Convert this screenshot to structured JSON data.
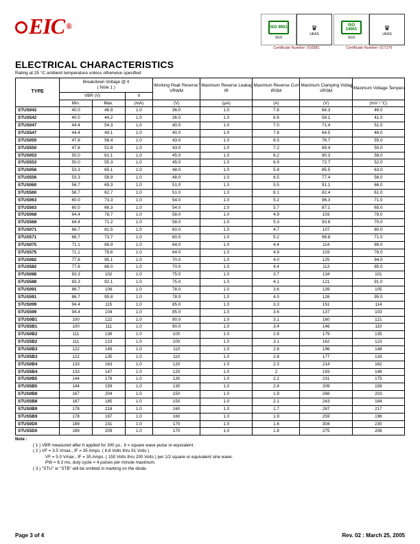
{
  "logo": {
    "text": "EIC",
    "reg": "®"
  },
  "certs": {
    "iso9001": "ISO 9001",
    "iso14001": "ISO 14001",
    "ukas": "UKAS",
    "cap1": "Certificate Number: 010581",
    "cap2": "Certificate Number: 017276"
  },
  "title": "ELECTRICAL CHARACTERISTICS",
  "subtitle": "Rating at 25 °C ambient temperature unless otherwise specified",
  "headers": {
    "type": "TYPE",
    "bv": "Breakdown Voltage @  It",
    "note1": "( Note 1 )",
    "vbr": "VBR  (V)",
    "min": "Min.",
    "max": "Max.",
    "it": "It",
    "it_unit": "(mA)",
    "wprv": "Working Peak Reverse Voltage",
    "vrwm": "VRWM",
    "vrwm_unit": "(V)",
    "mrl": "Maximum Reverse Leakage @ VRWM",
    "ir": "IR",
    "ir_unit": "(µA)",
    "mrc": "Maximum Reverse Current",
    "irsm": "IRSM",
    "irsm_unit": "(A)",
    "mcv": "Maximum Clamping Voltage @ IRSM",
    "vrsm": "VRSM",
    "vrsm_unit": "(V)",
    "mvtv": "Maximum Voltage Temperature Variation of VBR",
    "mvtv_unit": "(mV / °C)"
  },
  "rows": [
    {
      "t": "STUS042",
      "min": "40.0",
      "max": "48.9",
      "it": "1.0",
      "vrwm": "36.0",
      "ir": "1.0",
      "irsm": "7.8",
      "vrsm": "64.3",
      "tv": "46.0"
    },
    {
      "t": "STUS542",
      "min": "40.0",
      "max": "44.2",
      "it": "1.0",
      "vrwm": "36.0",
      "ir": "1.0",
      "irsm": "8.6",
      "vrsm": "58.1",
      "tv": "41.0"
    },
    {
      "t": "STUS047",
      "min": "44.4",
      "max": "54.3",
      "it": "1.0",
      "vrwm": "40.0",
      "ir": "1.0",
      "irsm": "7.0",
      "vrsm": "71.4",
      "tv": "51.0"
    },
    {
      "t": "STUS547",
      "min": "44.4",
      "max": "49.1",
      "it": "1.0",
      "vrwm": "40.0",
      "ir": "1.0",
      "irsm": "7.8",
      "vrsm": "64.5",
      "tv": "46.0"
    },
    {
      "t": "STUS050",
      "min": "47.8",
      "max": "58.4",
      "it": "1.0",
      "vrwm": "43.0",
      "ir": "1.0",
      "irsm": "6.5",
      "vrsm": "76.7",
      "tv": "55.0"
    },
    {
      "t": "STUS550",
      "min": "47.8",
      "max": "52.8",
      "it": "1.0",
      "vrwm": "43.0",
      "ir": "1.0",
      "irsm": "7.2",
      "vrsm": "69.4",
      "tv": "50.0"
    },
    {
      "t": "STUS053",
      "min": "50.0",
      "max": "61.1",
      "it": "1.0",
      "vrwm": "45.0",
      "ir": "1.0",
      "irsm": "6.2",
      "vrsm": "80.3",
      "tv": "58.0"
    },
    {
      "t": "STUS553",
      "min": "50.0",
      "max": "55.3",
      "it": "1.0",
      "vrwm": "45.0",
      "ir": "1.0",
      "irsm": "6.9",
      "vrsm": "72.7",
      "tv": "52.0"
    },
    {
      "t": "STUS056",
      "min": "53.3",
      "max": "65.1",
      "it": "1.0",
      "vrwm": "48.0",
      "ir": "1.0",
      "irsm": "5.8",
      "vrsm": "85.5",
      "tv": "63.0"
    },
    {
      "t": "STUS556",
      "min": "53.3",
      "max": "58.9",
      "it": "1.0",
      "vrwm": "48.0",
      "ir": "1.0",
      "irsm": "6.5",
      "vrsm": "77.4",
      "tv": "56.0"
    },
    {
      "t": "STUS060",
      "min": "56.7",
      "max": "69.3",
      "it": "1.0",
      "vrwm": "51.0",
      "ir": "1.0",
      "irsm": "5.5",
      "vrsm": "91.1",
      "tv": "66.0"
    },
    {
      "t": "STUS560",
      "min": "56.7",
      "max": "62.7",
      "it": "1.0",
      "vrwm": "51.0",
      "ir": "1.0",
      "irsm": "6.1",
      "vrsm": "82.4",
      "tv": "61.0"
    },
    {
      "t": "STUS063",
      "min": "60.0",
      "max": "73.3",
      "it": "1.0",
      "vrwm": "54.0",
      "ir": "1.0",
      "irsm": "5.2",
      "vrsm": "96.3",
      "tv": "71.0"
    },
    {
      "t": "STUS563",
      "min": "60.0",
      "max": "66.3",
      "it": "1.0",
      "vrwm": "54.0",
      "ir": "1.0",
      "irsm": "5.7",
      "vrsm": "87.1",
      "tv": "65.0"
    },
    {
      "t": "STUS068",
      "min": "64.4",
      "max": "78.7",
      "it": "1.0",
      "vrwm": "58.0",
      "ir": "1.0",
      "irsm": "4.9",
      "vrsm": "103",
      "tv": "78.0"
    },
    {
      "t": "STUS568",
      "min": "64.4",
      "max": "71.2",
      "it": "1.0",
      "vrwm": "58.0",
      "ir": "1.0",
      "irsm": "5.3",
      "vrsm": "93.6",
      "tv": "70.0"
    },
    {
      "t": "STUS071",
      "min": "66.7",
      "max": "81.5",
      "it": "1.0",
      "vrwm": "60.0",
      "ir": "1.0",
      "irsm": "4.7",
      "vrsm": "107",
      "tv": "80.0"
    },
    {
      "t": "STUS571",
      "min": "66.7",
      "max": "73.7",
      "it": "1.0",
      "vrwm": "60.0",
      "ir": "1.0",
      "irsm": "5.2",
      "vrsm": "96.8",
      "tv": "71.0"
    },
    {
      "t": "STUS075",
      "min": "71.1",
      "max": "86.9",
      "it": "1.0",
      "vrwm": "64.0",
      "ir": "1.0",
      "irsm": "4.4",
      "vrsm": "114",
      "tv": "86.0"
    },
    {
      "t": "STUS575",
      "min": "71.1",
      "max": "78.6",
      "it": "1.0",
      "vrwm": "64.0",
      "ir": "1.0",
      "irsm": "4.9",
      "vrsm": "103",
      "tv": "76.0"
    },
    {
      "t": "STUS082",
      "min": "77.8",
      "max": "95.1",
      "it": "1.0",
      "vrwm": "70.0",
      "ir": "1.0",
      "irsm": "4.0",
      "vrsm": "125",
      "tv": "94.0"
    },
    {
      "t": "STUS582",
      "min": "77.8",
      "max": "86.0",
      "it": "1.0",
      "vrwm": "70.0",
      "ir": "1.0",
      "irsm": "4.4",
      "vrsm": "113",
      "tv": "85.0"
    },
    {
      "t": "STUS088",
      "min": "83.3",
      "max": "102",
      "it": "1.0",
      "vrwm": "75.0",
      "ir": "1.0",
      "irsm": "3.7",
      "vrsm": "134",
      "tv": "101"
    },
    {
      "t": "STUS588",
      "min": "83.3",
      "max": "92.1",
      "it": "1.0",
      "vrwm": "75.0",
      "ir": "1.0",
      "irsm": "4.1",
      "vrsm": "121",
      "tv": "91.0"
    },
    {
      "t": "STUS091",
      "min": "86.7",
      "max": "106",
      "it": "1.0",
      "vrwm": "78.0",
      "ir": "1.0",
      "irsm": "3.6",
      "vrsm": "139",
      "tv": "105"
    },
    {
      "t": "STUS591",
      "min": "86.7",
      "max": "95.8",
      "it": "1.0",
      "vrwm": "78.0",
      "ir": "1.0",
      "irsm": "4.0",
      "vrsm": "126",
      "tv": "95.0"
    },
    {
      "t": "STUS099",
      "min": "94.4",
      "max": "115",
      "it": "1.0",
      "vrwm": "85.0",
      "ir": "1.0",
      "irsm": "3.3",
      "vrsm": "151",
      "tv": "114"
    },
    {
      "t": "STUS599",
      "min": "94.4",
      "max": "104",
      "it": "1.0",
      "vrwm": "85.0",
      "ir": "1.0",
      "irsm": "3.6",
      "vrsm": "137",
      "tv": "103"
    },
    {
      "t": "STUS0B1",
      "min": "100",
      "max": "122",
      "it": "1.0",
      "vrwm": "90.0",
      "ir": "1.0",
      "irsm": "3.1",
      "vrsm": "160",
      "tv": "121"
    },
    {
      "t": "STUS5B1",
      "min": "100",
      "max": "111",
      "it": "1.0",
      "vrwm": "90.0",
      "ir": "1.0",
      "irsm": "3.4",
      "vrsm": "146",
      "tv": "110"
    },
    {
      "t": "STUS0B2",
      "min": "111",
      "max": "136",
      "it": "1.0",
      "vrwm": "100",
      "ir": "1.0",
      "irsm": "2.8",
      "vrsm": "179",
      "tv": "135"
    },
    {
      "t": "STUS5B2",
      "min": "111",
      "max": "123",
      "it": "1.0",
      "vrwm": "100",
      "ir": "1.0",
      "irsm": "3.1",
      "vrsm": "162",
      "tv": "123"
    },
    {
      "t": "STUS0B3",
      "min": "122",
      "max": "149",
      "it": "1.0",
      "vrwm": "110",
      "ir": "1.0",
      "irsm": "2.6",
      "vrsm": "196",
      "tv": "148"
    },
    {
      "t": "STUS5B3",
      "min": "122",
      "max": "135",
      "it": "1.0",
      "vrwm": "110",
      "ir": "1.0",
      "irsm": "2.8",
      "vrsm": "177",
      "tv": "133"
    },
    {
      "t": "STUS0B4",
      "min": "133",
      "max": "163",
      "it": "1.0",
      "vrwm": "120",
      "ir": "1.0",
      "irsm": "2.3",
      "vrsm": "214",
      "tv": "162"
    },
    {
      "t": "STUS5B4",
      "min": "133",
      "max": "147",
      "it": "1.0",
      "vrwm": "120",
      "ir": "1.0",
      "irsm": "2",
      "vrsm": "193",
      "tv": "146"
    },
    {
      "t": "STUS0B5",
      "min": "144",
      "max": "176",
      "it": "1.0",
      "vrwm": "130",
      "ir": "1.0",
      "irsm": "2.2",
      "vrsm": "231",
      "tv": "175"
    },
    {
      "t": "STUS5B5",
      "min": "144",
      "max": "159",
      "it": "1.0",
      "vrwm": "130",
      "ir": "1.0",
      "irsm": "2.4",
      "vrsm": "209",
      "tv": "158"
    },
    {
      "t": "STUS0B8",
      "min": "167",
      "max": "204",
      "it": "1.0",
      "vrwm": "150",
      "ir": "1.0",
      "irsm": "1.9",
      "vrsm": "268",
      "tv": "203"
    },
    {
      "t": "STUS5B8",
      "min": "167",
      "max": "185",
      "it": "1.0",
      "vrwm": "150",
      "ir": "1.0",
      "irsm": "2.1",
      "vrsm": "243",
      "tv": "184"
    },
    {
      "t": "STUS0B9",
      "min": "178",
      "max": "218",
      "it": "1.0",
      "vrwm": "160",
      "ir": "1.0",
      "irsm": "1.7",
      "vrsm": "287",
      "tv": "217"
    },
    {
      "t": "STUS5B9",
      "min": "178",
      "max": "197",
      "it": "1.0",
      "vrwm": "160",
      "ir": "1.0",
      "irsm": "1.9",
      "vrsm": "259",
      "tv": "196"
    },
    {
      "t": "STUS0D0",
      "min": "189",
      "max": "231",
      "it": "1.0",
      "vrwm": "170",
      "ir": "1.0",
      "irsm": "1.6",
      "vrsm": "304",
      "tv": "230"
    },
    {
      "t": "STUS5D0",
      "min": "189",
      "max": "209",
      "it": "1.0",
      "vrwm": "170",
      "ir": "1.0",
      "irsm": "1.8",
      "vrsm": "275",
      "tv": "208"
    }
  ],
  "notes": {
    "label": "Note :",
    "n1": "( 1 )  VBR measured after It applied for 300 µs.. It  = square wave pulse or equivalent.",
    "n2a": "( 2 )  VF = 3.5 Vmax., IF = 35 Amps.  ( 6.8 Volts thru 91 Volts )",
    "n2b": "VF = 5.0 Vmax., IF = 35 Amps.  ( 150 Volts thru 200 Volts ) per 1/2 square or equivalent sine wave.",
    "n2c": "PW = 8.3 ms, duty cycle = 4 pulses per minute maximum.",
    "n3": "( 3 )  \"STU\" or \"STB\" will be omitted in marking on the diode."
  },
  "footer": {
    "left": "Page 3 of 4",
    "right": "Rev. 02 : March 25, 2005"
  },
  "style": {
    "logo_color": "#cc0000",
    "border_color": "#000000",
    "font_body": "Arial",
    "font_size_table": 6.3,
    "font_size_title": 14
  }
}
